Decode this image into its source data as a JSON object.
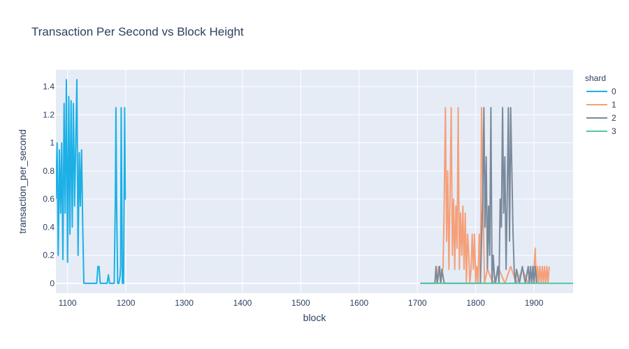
{
  "chart_data": {
    "type": "line",
    "title": "Transaction Per Second vs Block Height",
    "xlabel": "block",
    "ylabel": "transaction_per_second",
    "xlim": [
      1080,
      1967
    ],
    "ylim": [
      -0.07,
      1.52
    ],
    "xticks": [
      1100,
      1200,
      1300,
      1400,
      1500,
      1600,
      1700,
      1800,
      1900
    ],
    "yticks": [
      0,
      0.2,
      0.4,
      0.6,
      0.8,
      1,
      1.2,
      1.4
    ],
    "grid": true,
    "legend": {
      "title": "shard",
      "placement": "right"
    },
    "series": [
      {
        "name": "0",
        "color": "#1cb0e6",
        "x": [
          1080,
          1082,
          1084,
          1086,
          1088,
          1090,
          1092,
          1094,
          1096,
          1098,
          1100,
          1102,
          1104,
          1106,
          1108,
          1110,
          1112,
          1114,
          1116,
          1118,
          1120,
          1122,
          1124,
          1126,
          1128,
          1130,
          1135,
          1140,
          1145,
          1150,
          1152,
          1154,
          1156,
          1160,
          1165,
          1168,
          1170,
          1172,
          1175,
          1178,
          1180,
          1182,
          1183,
          1184,
          1186,
          1188,
          1190,
          1191,
          1192,
          1194,
          1196,
          1198,
          1199,
          1200
        ],
        "y": [
          0.6,
          1.0,
          0.2,
          0.95,
          0.5,
          1.0,
          0.17,
          1.28,
          0.5,
          1.45,
          0.15,
          1.33,
          0.35,
          1.3,
          0.4,
          1.28,
          0.55,
          1.0,
          1.45,
          0.2,
          0.93,
          0.55,
          0.95,
          0.4,
          0.0,
          0.0,
          0.0,
          0.0,
          0.0,
          0.0,
          0.12,
          0.12,
          0.0,
          0.0,
          0.0,
          0.0,
          0.06,
          0.0,
          0.0,
          0.0,
          0.0,
          0.62,
          1.25,
          0.6,
          0.0,
          0.0,
          0.05,
          0.12,
          1.25,
          0.0,
          0.0,
          1.25,
          0.6,
          0.6
        ]
      },
      {
        "name": "1",
        "color": "#f5a07a",
        "x": [
          1705,
          1730,
          1732,
          1734,
          1736,
          1740,
          1742,
          1744,
          1746,
          1748,
          1750,
          1752,
          1754,
          1756,
          1758,
          1760,
          1762,
          1764,
          1766,
          1768,
          1770,
          1772,
          1774,
          1776,
          1778,
          1780,
          1782,
          1784,
          1786,
          1788,
          1790,
          1792,
          1794,
          1796,
          1798,
          1800,
          1802,
          1804,
          1806,
          1808,
          1810,
          1815,
          1820,
          1830,
          1840,
          1850,
          1860,
          1870,
          1880,
          1890,
          1900,
          1902,
          1904,
          1906,
          1908,
          1910,
          1912,
          1914,
          1916,
          1918,
          1920,
          1922,
          1924,
          1926
        ],
        "y": [
          0.0,
          0.0,
          0.12,
          0.0,
          0.12,
          0.0,
          0.06,
          0.12,
          0.58,
          1.25,
          0.3,
          0.8,
          0.1,
          0.65,
          1.25,
          0.2,
          0.6,
          0.1,
          0.55,
          0.25,
          1.25,
          0.1,
          0.5,
          0.2,
          0.55,
          0.1,
          0.5,
          0.0,
          0.35,
          0.2,
          0.0,
          0.1,
          0.35,
          0.1,
          0.35,
          0.0,
          0.12,
          0.0,
          0.35,
          0.0,
          1.25,
          0.0,
          0.1,
          0.0,
          0.1,
          0.0,
          0.12,
          0.0,
          0.1,
          0.0,
          0.1,
          0.25,
          0.0,
          0.12,
          0.0,
          0.12,
          0.0,
          0.12,
          0.0,
          0.12,
          0.0,
          0.12,
          0.0,
          0.12
        ]
      },
      {
        "name": "2",
        "color": "#7a8a9c",
        "x": [
          1705,
          1730,
          1732,
          1734,
          1738,
          1740,
          1742,
          1746,
          1750,
          1760,
          1770,
          1780,
          1800,
          1808,
          1810,
          1812,
          1814,
          1816,
          1818,
          1820,
          1822,
          1824,
          1826,
          1828,
          1830,
          1832,
          1834,
          1838,
          1840,
          1842,
          1844,
          1846,
          1848,
          1850,
          1852,
          1854,
          1856,
          1858,
          1860,
          1862,
          1864,
          1866,
          1868,
          1870,
          1875,
          1880,
          1885,
          1890,
          1892,
          1894,
          1896,
          1898,
          1900,
          1902,
          1905
        ],
        "y": [
          0.0,
          0.0,
          0.12,
          0.0,
          0.12,
          0.0,
          0.1,
          0.0,
          0.0,
          0.0,
          0.0,
          0.0,
          0.0,
          0.0,
          0.3,
          0.6,
          1.25,
          0.4,
          0.9,
          0.1,
          0.55,
          0.2,
          1.25,
          0.0,
          0.2,
          0.05,
          0.0,
          0.12,
          0.0,
          0.6,
          0.4,
          1.25,
          0.5,
          0.9,
          0.1,
          0.6,
          1.25,
          0.3,
          1.25,
          0.8,
          0.35,
          0.1,
          0.0,
          0.1,
          0.0,
          0.12,
          0.0,
          0.12,
          0.0,
          0.12,
          0.0,
          0.12,
          0.0,
          0.12,
          0.0
        ]
      },
      {
        "name": "3",
        "color": "#52c8a0",
        "x": [
          1705,
          1967
        ],
        "y": [
          0.0,
          0.0
        ]
      }
    ]
  }
}
